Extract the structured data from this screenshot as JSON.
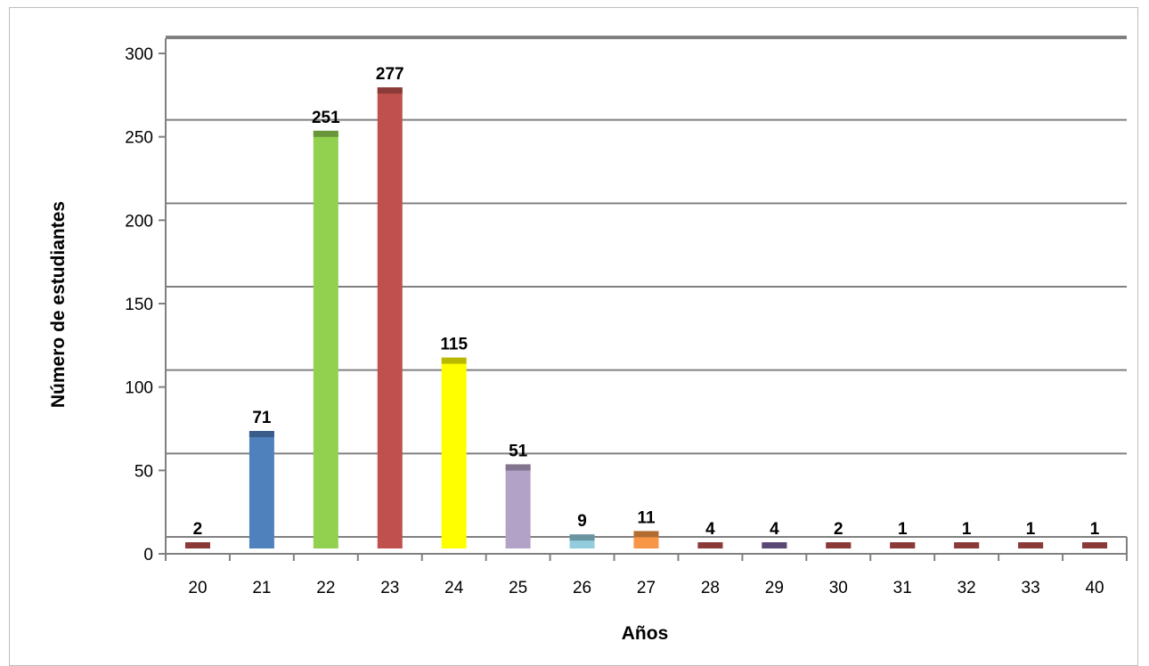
{
  "chart_data": {
    "type": "bar",
    "title": "",
    "xlabel": "Años",
    "ylabel": "Número de estudiantes",
    "categories": [
      "20",
      "21",
      "22",
      "23",
      "24",
      "25",
      "26",
      "27",
      "28",
      "29",
      "30",
      "31",
      "32",
      "33",
      "40"
    ],
    "values": [
      2,
      71,
      251,
      277,
      115,
      51,
      9,
      11,
      4,
      4,
      2,
      1,
      1,
      1,
      1
    ],
    "ylim": [
      0,
      300
    ],
    "yticks": [
      0,
      50,
      100,
      150,
      200,
      250,
      300
    ],
    "colors": [
      "#c0504d",
      "#4f81bd",
      "#92d050",
      "#c0504d",
      "#ffff00",
      "#b3a2c7",
      "#93cddd",
      "#f79646",
      "#c0504d",
      "#8064a2",
      "#c0504d",
      "#c0504d",
      "#c0504d",
      "#c0504d",
      "#c0504d"
    ],
    "grid": true,
    "legend": "none"
  }
}
